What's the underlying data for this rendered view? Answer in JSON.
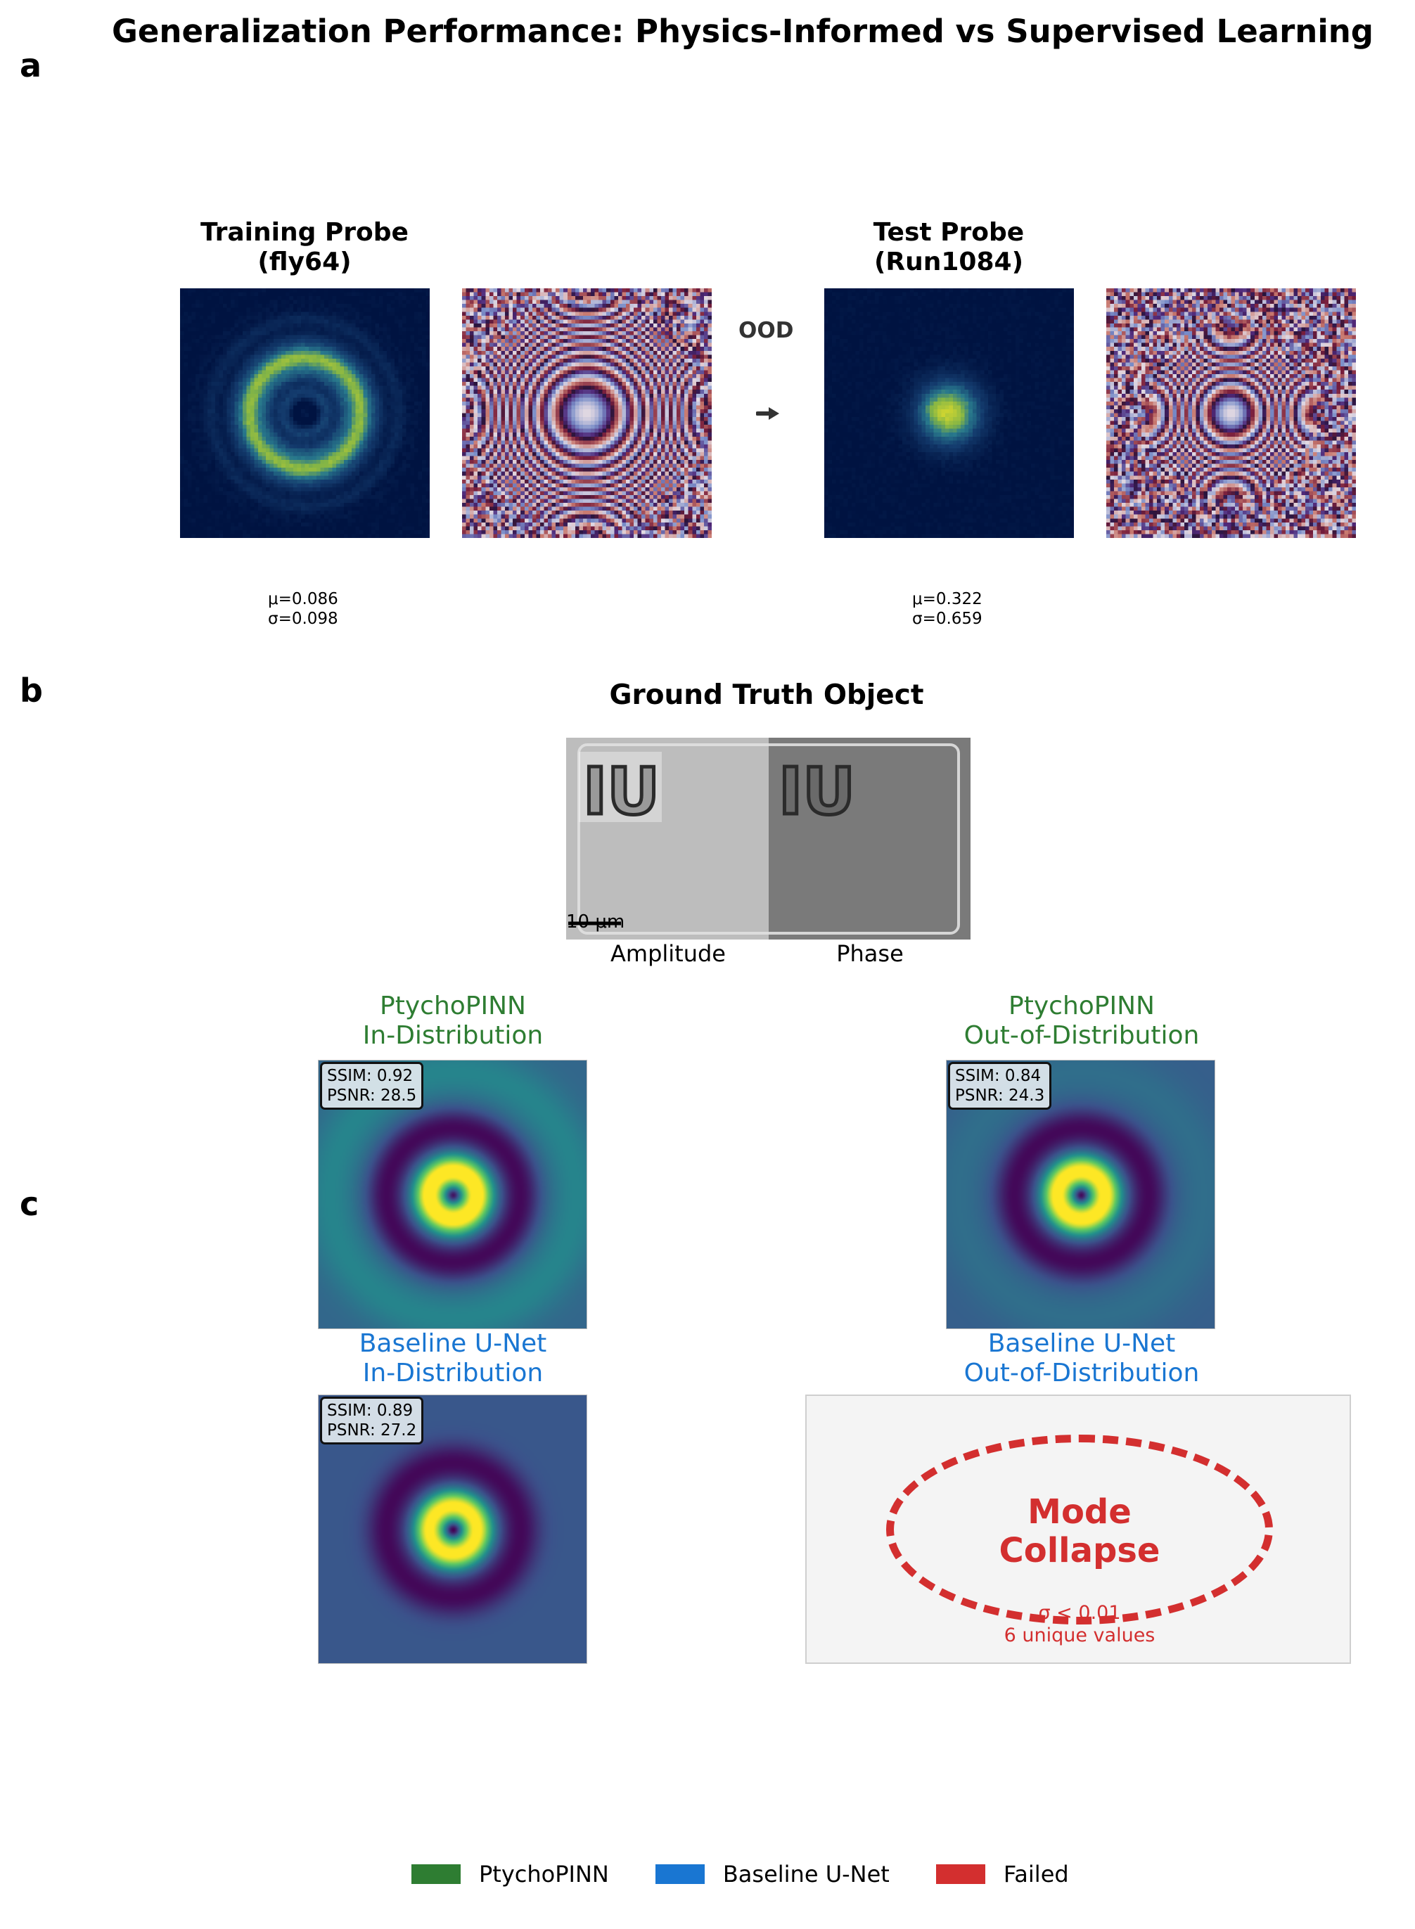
{
  "title": "Generalization Performance: Physics-Informed vs Supervised Learning",
  "panels": {
    "a": "a",
    "b": "b",
    "c": "c"
  },
  "panel_a": {
    "training_probe": {
      "title_line1": "Training Probe",
      "title_line2": "(fly64)",
      "mu": "μ=0.086",
      "sigma": "σ=0.098"
    },
    "test_probe": {
      "title_line1": "Test Probe",
      "title_line2": "(Run1084)",
      "mu": "μ=0.322",
      "sigma": "σ=0.659"
    },
    "ood_label": "OOD",
    "arrow_icon": "right-arrow-icon"
  },
  "panel_b": {
    "title": "Ground Truth Object",
    "scalebar": "10 μm",
    "amplitude_label": "Amplitude",
    "phase_label": "Phase",
    "object_letters": "IU"
  },
  "panel_c": {
    "pinn_in": {
      "title_line1": "PtychoPINN",
      "title_line2": "In-Distribution",
      "ssim": "SSIM: 0.92",
      "psnr": "PSNR: 28.5"
    },
    "pinn_ood": {
      "title_line1": "PtychoPINN",
      "title_line2": "Out-of-Distribution",
      "ssim": "SSIM: 0.84",
      "psnr": "PSNR: 24.3"
    },
    "unet_in": {
      "title_line1": "Baseline U-Net",
      "title_line2": "In-Distribution",
      "ssim": "SSIM: 0.89",
      "psnr": "PSNR: 27.2"
    },
    "unet_ood": {
      "title_line1": "Baseline U-Net",
      "title_line2": "Out-of-Distribution",
      "failure_line1": "Mode",
      "failure_line2": "Collapse",
      "note_line1": "σ < 0.01",
      "note_line2": "6 unique values"
    }
  },
  "legend": [
    {
      "label": "PtychoPINN",
      "color": "#2e7d32"
    },
    {
      "label": "Baseline U-Net",
      "color": "#1976d2"
    },
    {
      "label": "Failed",
      "color": "#d32f2f"
    }
  ],
  "colors": {
    "pinn": "#2e7d32",
    "unet": "#1976d2",
    "failed": "#d32f2f"
  }
}
